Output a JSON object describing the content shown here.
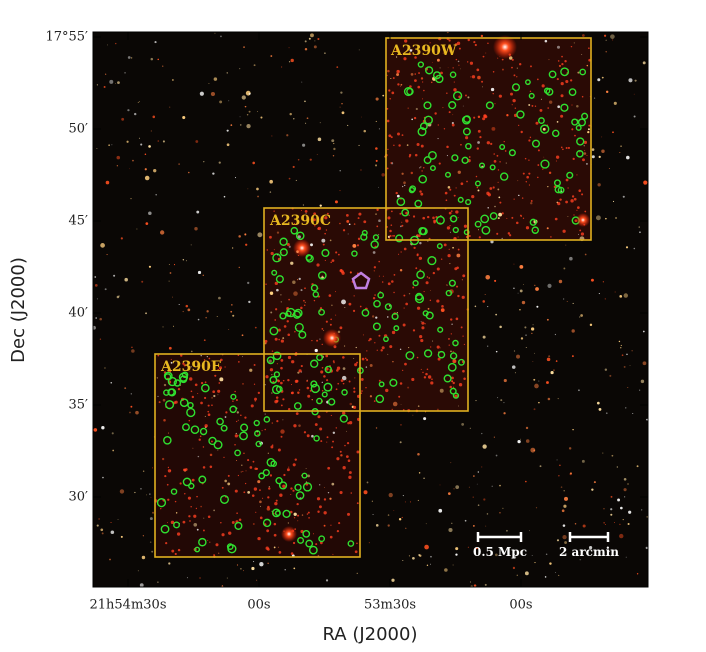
{
  "axes": {
    "x_label": "RA (J2000)",
    "y_label": "Dec (J2000)",
    "x_ticks": [
      "21h54m30s",
      "00s",
      "53m30s",
      "00s"
    ],
    "y_ticks": [
      "17°55′",
      "50′",
      "45′",
      "40′",
      "35′",
      "30′"
    ]
  },
  "fields": [
    {
      "label": "A2390W"
    },
    {
      "label": "A2390C"
    },
    {
      "label": "A2390E"
    }
  ],
  "scale_bars": [
    {
      "label": "0.5 Mpc"
    },
    {
      "label": "2 arcmin"
    }
  ]
}
